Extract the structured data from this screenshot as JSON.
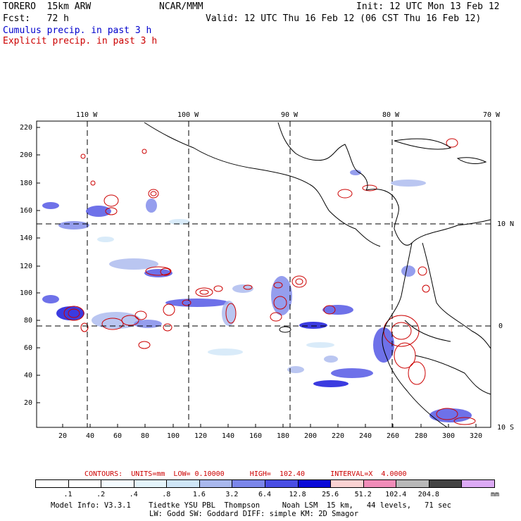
{
  "header": {
    "model": "TORERO  15km ARW",
    "org": "NCAR/MMM",
    "init": "Init: 12 UTC Mon 13 Feb 12",
    "fcst": "Fcst:   72 h",
    "valid": "Valid: 12 UTC Thu 16 Feb 12 (06 CST Thu 16 Feb 12)",
    "cumulus": "Cumulus precip. in past 3 h",
    "explicit": "Explicit precip. in past 3 h"
  },
  "colors": {
    "cumulus": "#0000cc",
    "explicit": "#cc0000",
    "coast": "#000000"
  },
  "map": {
    "lon_labels": [
      "110 W",
      "100 W",
      "90 W",
      "80 W",
      "70 W"
    ],
    "lat_labels": [
      "10 N",
      "0",
      "10 S"
    ],
    "y_ticks": [
      "220",
      "200",
      "180",
      "160",
      "140",
      "120",
      "100",
      "80",
      "60",
      "40",
      "20"
    ],
    "x_ticks": [
      "20",
      "40",
      "60",
      "80",
      "100",
      "120",
      "140",
      "160",
      "180",
      "200",
      "220",
      "240",
      "260",
      "280",
      "300",
      "320"
    ]
  },
  "contours": {
    "text": "CONTOURS:  UNITS=mm  LOW= 0.10000      HIGH=  102.40      INTERVAL=X  4.0000"
  },
  "colorbar": {
    "values": [
      ".1",
      ".2",
      ".4",
      ".8",
      "1.6",
      "3.2",
      "6.4",
      "12.8",
      "25.6",
      "51.2",
      "102.4",
      "204.8"
    ],
    "unit": "mm",
    "colors": [
      "#ffffff",
      "#ffffff",
      "#f4fbff",
      "#e4f4fb",
      "#cfe6f7",
      "#a9b8ee",
      "#7b86ea",
      "#4a4ee4",
      "#0a0ad8",
      "#fad2d2",
      "#f08cb8",
      "#b8b8b8",
      "#444444",
      "#dcaaf5"
    ]
  },
  "footer": {
    "line1": "Model Info: V3.3.1    Tiedtke YSU PBL  Thompson     Noah LSM  15 km,   44 levels,   71 sec",
    "line2": "LW: Godd SW: Goddard DIFF: simple KM: 2D Smagor"
  }
}
